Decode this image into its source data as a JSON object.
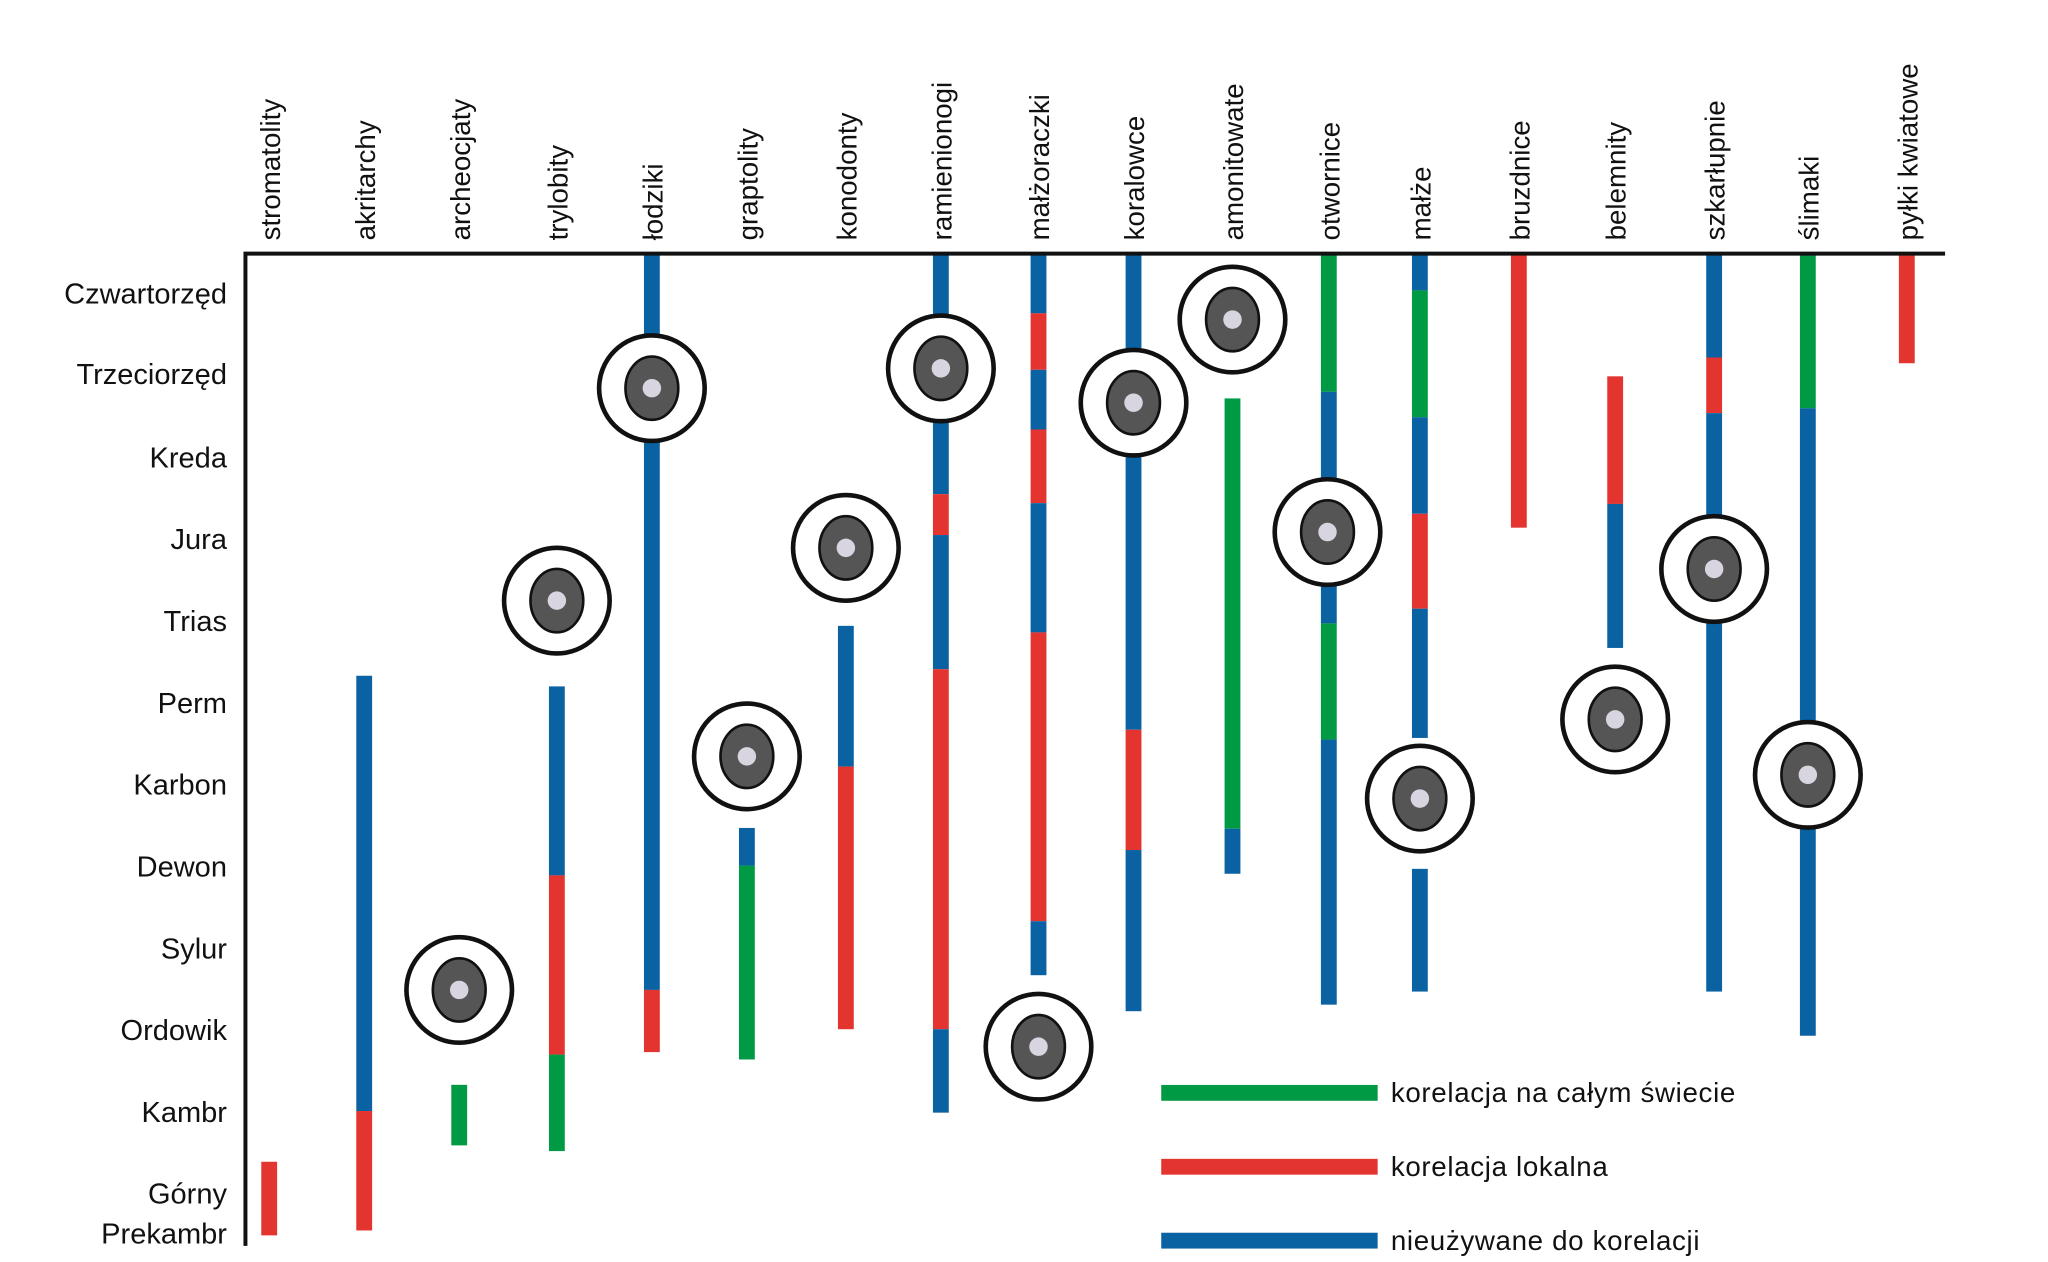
{
  "chart_data": {
    "type": "range-bar",
    "title": "",
    "y_unit_note": "positions in geological-period units from top of time axis (0 = present, each period = 1)",
    "periods": [
      "Czwartorzęd",
      "Trzeciorzęd",
      "Kreda",
      "Jura",
      "Trias",
      "Perm",
      "Karbon",
      "Dewon",
      "Sylur",
      "Ordowik",
      "Kambr",
      "Górny Prekambr"
    ],
    "colors": {
      "global": "#009a44",
      "local": "#e3342f",
      "unused": "#0a62a3"
    },
    "legend": [
      {
        "key": "global",
        "label": "korelacja na całym świecie"
      },
      {
        "key": "local",
        "label": "korelacja lokalna"
      },
      {
        "key": "unused",
        "label": "nieużywane do korelacji"
      }
    ],
    "series": [
      {
        "name": "stromatolity",
        "icon": null,
        "segments": [
          {
            "type": "local",
            "from": 11.1,
            "to": 12.0
          }
        ]
      },
      {
        "name": "akritarchy",
        "icon": null,
        "segments": [
          {
            "type": "unused",
            "from": 5.16,
            "to": 10.48
          },
          {
            "type": "local",
            "from": 10.48,
            "to": 11.94
          }
        ]
      },
      {
        "name": "archeocjaty",
        "icon": "archaeocyath-icon",
        "segments": [
          {
            "type": "global",
            "from": 10.16,
            "to": 10.9
          }
        ]
      },
      {
        "name": "trylobity",
        "icon": "trilobite-icon",
        "segments": [
          {
            "type": "unused",
            "from": 5.29,
            "to": 7.6
          },
          {
            "type": "local",
            "from": 7.6,
            "to": 9.79
          },
          {
            "type": "global",
            "from": 9.79,
            "to": 10.97
          }
        ]
      },
      {
        "name": "łodziki",
        "icon": "nautilus-icon",
        "segments": [
          {
            "type": "unused",
            "from": 0,
            "to": 9.0
          },
          {
            "type": "local",
            "from": 9.0,
            "to": 9.76
          }
        ]
      },
      {
        "name": "graptolity",
        "icon": "graptolite-icon",
        "segments": [
          {
            "type": "unused",
            "from": 7.02,
            "to": 7.48
          },
          {
            "type": "global",
            "from": 7.48,
            "to": 9.85
          }
        ]
      },
      {
        "name": "konodonty",
        "icon": "conodont-icon",
        "segments": [
          {
            "type": "unused",
            "from": 4.55,
            "to": 6.27
          },
          {
            "type": "local",
            "from": 6.27,
            "to": 9.48
          }
        ]
      },
      {
        "name": "ramienionogi",
        "icon": "brachiopod-icon",
        "segments": [
          {
            "type": "unused",
            "from": 0,
            "to": 2.94
          },
          {
            "type": "local",
            "from": 2.94,
            "to": 3.44
          },
          {
            "type": "unused",
            "from": 3.44,
            "to": 5.08
          },
          {
            "type": "local",
            "from": 5.08,
            "to": 9.48
          },
          {
            "type": "unused",
            "from": 9.48,
            "to": 10.5
          }
        ]
      },
      {
        "name": "małżoraczki",
        "icon": "ostracod-icon",
        "segments": [
          {
            "type": "unused",
            "from": 0,
            "to": 0.73
          },
          {
            "type": "local",
            "from": 0.73,
            "to": 1.42
          },
          {
            "type": "unused",
            "from": 1.42,
            "to": 2.15
          },
          {
            "type": "local",
            "from": 2.15,
            "to": 3.05
          },
          {
            "type": "unused",
            "from": 3.05,
            "to": 4.63
          },
          {
            "type": "local",
            "from": 4.63,
            "to": 8.16
          },
          {
            "type": "unused",
            "from": 8.16,
            "to": 8.82
          }
        ]
      },
      {
        "name": "koralowce",
        "icon": "coral-icon",
        "segments": [
          {
            "type": "unused",
            "from": 0,
            "to": 5.82
          },
          {
            "type": "local",
            "from": 5.82,
            "to": 7.29
          },
          {
            "type": "unused",
            "from": 7.29,
            "to": 9.26
          }
        ]
      },
      {
        "name": "amonitowate",
        "icon": "ammonite-icon",
        "segments": [
          {
            "type": "global",
            "from": 1.77,
            "to": 7.03
          },
          {
            "type": "unused",
            "from": 7.03,
            "to": 7.58
          }
        ]
      },
      {
        "name": "otwornice",
        "icon": "foraminifera-icon",
        "segments": [
          {
            "type": "global",
            "from": 0,
            "to": 1.69
          },
          {
            "type": "unused",
            "from": 1.69,
            "to": 4.52
          },
          {
            "type": "global",
            "from": 4.52,
            "to": 5.94
          },
          {
            "type": "unused",
            "from": 5.94,
            "to": 9.18
          }
        ]
      },
      {
        "name": "małże",
        "icon": "bivalve-icon",
        "segments": [
          {
            "type": "unused",
            "from": 0,
            "to": 0.45
          },
          {
            "type": "global",
            "from": 0.45,
            "to": 2.0
          },
          {
            "type": "unused",
            "from": 2.0,
            "to": 3.18
          },
          {
            "type": "local",
            "from": 3.18,
            "to": 4.34
          },
          {
            "type": "unused",
            "from": 4.34,
            "to": 5.92
          },
          {
            "type": "unused",
            "from": 7.52,
            "to": 9.02
          }
        ]
      },
      {
        "name": "bruzdnice",
        "icon": null,
        "segments": [
          {
            "type": "local",
            "from": 0,
            "to": 3.35
          }
        ]
      },
      {
        "name": "belemnity",
        "icon": "belemnite-icon",
        "segments": [
          {
            "type": "local",
            "from": 1.5,
            "to": 3.06
          },
          {
            "type": "unused",
            "from": 3.06,
            "to": 4.82
          }
        ]
      },
      {
        "name": "szkarłupnie",
        "icon": "echinoid-icon",
        "segments": [
          {
            "type": "unused",
            "from": 0,
            "to": 1.27
          },
          {
            "type": "local",
            "from": 1.27,
            "to": 1.95
          },
          {
            "type": "unused",
            "from": 1.95,
            "to": 9.02
          }
        ]
      },
      {
        "name": "ślimaki",
        "icon": "gastropod-icon",
        "segments": [
          {
            "type": "global",
            "from": 0,
            "to": 1.89
          },
          {
            "type": "unused",
            "from": 1.89,
            "to": 9.56
          }
        ]
      },
      {
        "name": "pyłki kwiatowe",
        "icon": null,
        "segments": [
          {
            "type": "local",
            "from": 0,
            "to": 1.34
          }
        ]
      }
    ]
  }
}
